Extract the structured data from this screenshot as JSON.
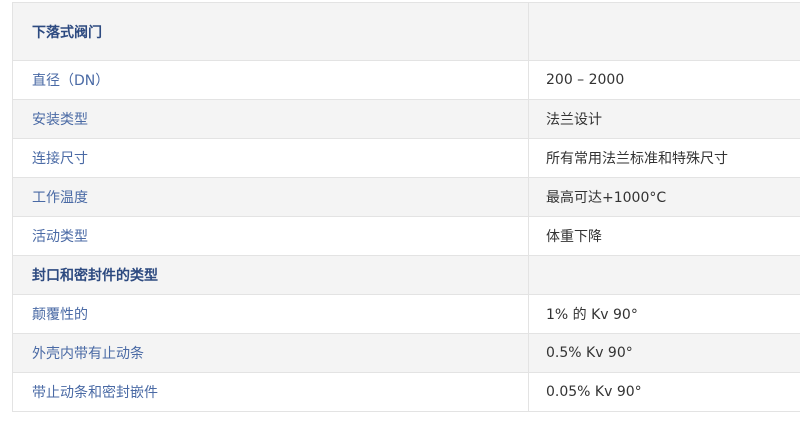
{
  "table": {
    "rows": [
      {
        "label": "下落式阀门",
        "value": "",
        "type": "header"
      },
      {
        "label": "直径（DN）",
        "value": "200 – 2000"
      },
      {
        "label": "安装类型",
        "value": "法兰设计"
      },
      {
        "label": "连接尺寸",
        "value": "所有常用法兰标准和特殊尺寸"
      },
      {
        "label": "工作温度",
        "value": "最高可达+1000°C"
      },
      {
        "label": "活动类型",
        "value": "体重下降"
      },
      {
        "label": "封口和密封件的类型",
        "value": "",
        "type": "section"
      },
      {
        "label": "颠覆性的",
        "value": "1% 的 Kv 90°"
      },
      {
        "label": "外壳内带有止动条",
        "value": "0.5% Kv 90°"
      },
      {
        "label": "带止动条和密封嵌件",
        "value": "0.05% Kv 90°"
      }
    ]
  }
}
